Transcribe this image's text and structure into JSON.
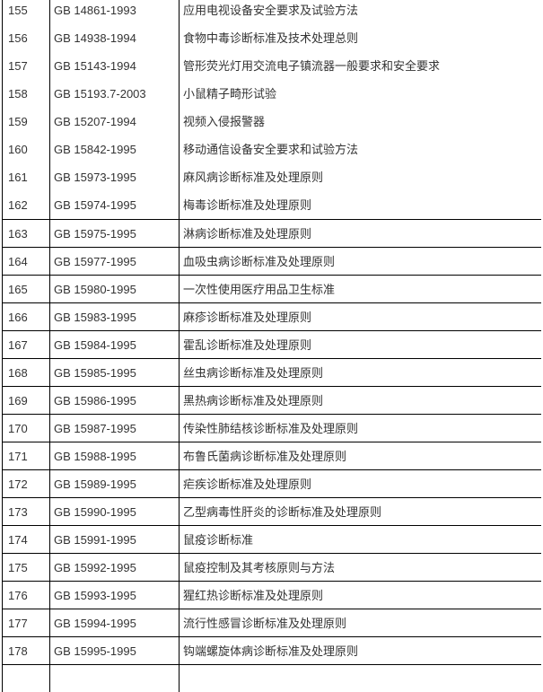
{
  "table": {
    "rows": [
      {
        "no": "155",
        "code": "GB 14861-1993",
        "title": "应用电视设备安全要求及试验方法"
      },
      {
        "no": "156",
        "code": "GB 14938-1994",
        "title": "食物中毒诊断标准及技术处理总则"
      },
      {
        "no": "157",
        "code": "GB 15143-1994",
        "title": "管形荧光灯用交流电子镇流器一般要求和安全要求"
      },
      {
        "no": "158",
        "code": "GB 15193.7-2003",
        "title": "小鼠精子畸形试验"
      },
      {
        "no": "159",
        "code": "GB 15207-1994",
        "title": "视频入侵报警器"
      },
      {
        "no": "160",
        "code": "GB 15842-1995",
        "title": "移动通信设备安全要求和试验方法"
      },
      {
        "no": "161",
        "code": "GB 15973-1995",
        "title": "麻风病诊断标准及处理原则"
      },
      {
        "no": "162",
        "code": "GB 15974-1995",
        "title": "梅毒诊断标准及处理原则"
      },
      {
        "no": "163",
        "code": "GB 15975-1995",
        "title": "淋病诊断标准及处理原则"
      },
      {
        "no": "164",
        "code": "GB 15977-1995",
        "title": "血吸虫病诊断标准及处理原则"
      },
      {
        "no": "165",
        "code": "GB 15980-1995",
        "title": "一次性使用医疗用品卫生标准"
      },
      {
        "no": "166",
        "code": "GB 15983-1995",
        "title": "麻疹诊断标准及处理原则"
      },
      {
        "no": "167",
        "code": "GB 15984-1995",
        "title": "霍乱诊断标准及处理原则"
      },
      {
        "no": "168",
        "code": "GB 15985-1995",
        "title": "丝虫病诊断标准及处理原则"
      },
      {
        "no": "169",
        "code": "GB 15986-1995",
        "title": "黑热病诊断标准及处理原则"
      },
      {
        "no": "170",
        "code": "GB 15987-1995",
        "title": "传染性肺结核诊断标准及处理原则"
      },
      {
        "no": "171",
        "code": "GB 15988-1995",
        "title": "布鲁氏菌病诊断标准及处理原则"
      },
      {
        "no": "172",
        "code": "GB 15989-1995",
        "title": "疟疾诊断标准及处理原则"
      },
      {
        "no": "173",
        "code": "GB 15990-1995",
        "title": "乙型病毒性肝炎的诊断标准及处理原则"
      },
      {
        "no": "174",
        "code": "GB 15991-1995",
        "title": "鼠疫诊断标准"
      },
      {
        "no": "175",
        "code": "GB 15992-1995",
        "title": "鼠疫控制及其考核原则与方法"
      },
      {
        "no": "176",
        "code": "GB 15993-1995",
        "title": "猩红热诊断标准及处理原则"
      },
      {
        "no": "177",
        "code": "GB 15994-1995",
        "title": "流行性感冒诊断标准及处理原则"
      },
      {
        "no": "178",
        "code": "GB 15995-1995",
        "title": "钩端螺旋体病诊断标准及处理原则"
      }
    ]
  }
}
